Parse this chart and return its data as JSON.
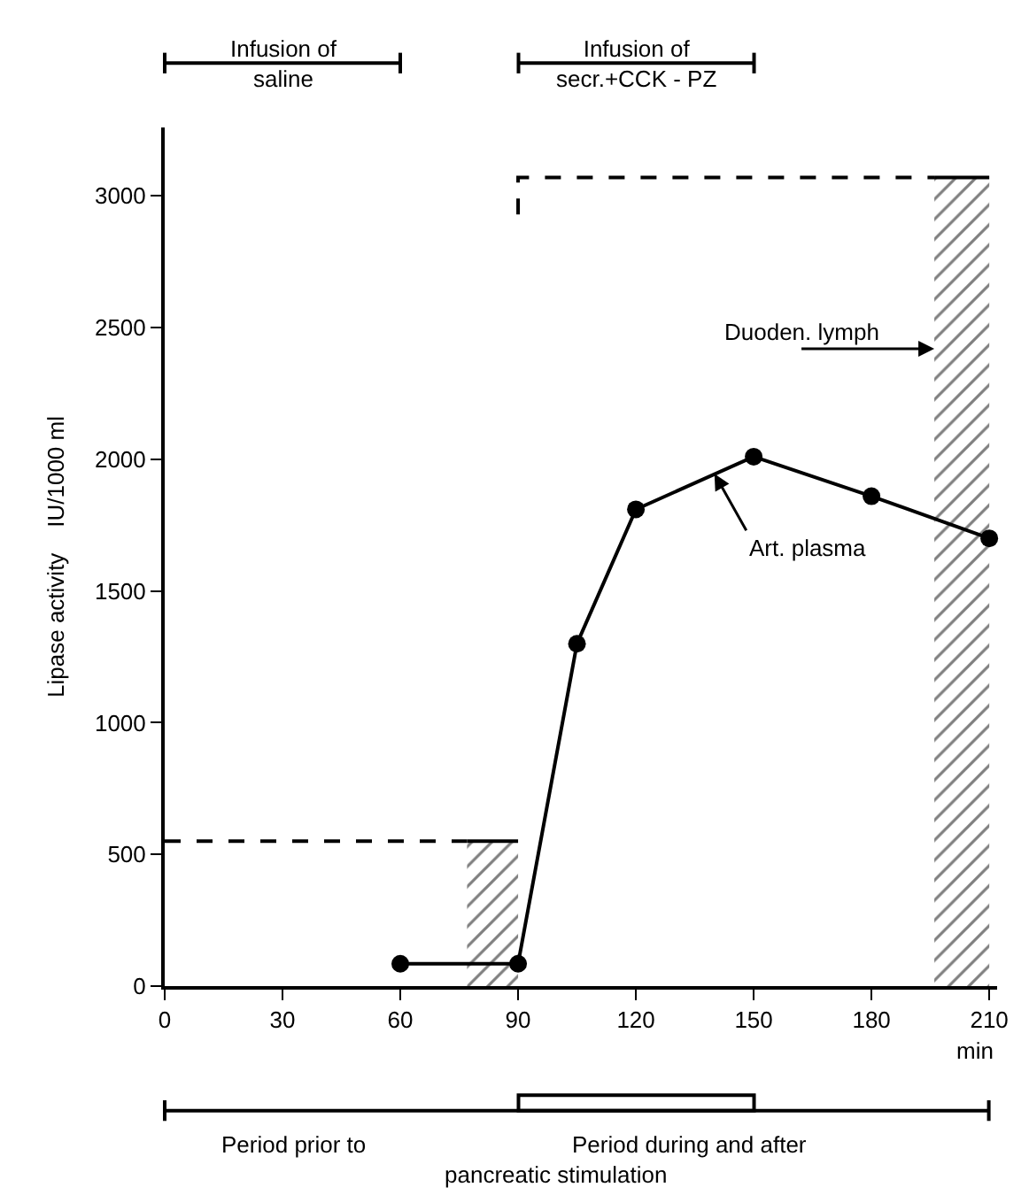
{
  "chart_data": {
    "type": "line",
    "xlabel": "min",
    "ylabel": "Lipase activity    IU/1000 ml",
    "x": [
      60,
      90,
      105,
      120,
      150,
      180,
      210
    ],
    "series": [
      {
        "color": "#000000",
        "values": [
          85,
          85,
          1300,
          1810,
          2010,
          1860,
          1700
        ],
        "marker": "circle",
        "line_style": "solid"
      },
      {
        "type": "area",
        "color": "#000000",
        "x": [
          77,
          90
        ],
        "values": [
          550,
          550
        ]
      },
      {
        "type": "area",
        "color": "#000000",
        "x": [
          196,
          210
        ],
        "values": [
          3070,
          3070
        ]
      },
      {
        "color": "#000000",
        "x": [
          0,
          77
        ],
        "values": [
          550,
          550
        ],
        "marker": "none",
        "line_style": "dashed"
      },
      {
        "color": "#000000",
        "x": [
          90,
          90,
          196
        ],
        "values": [
          2930,
          3070,
          3070
        ],
        "marker": "none",
        "line_style": "dashed"
      }
    ],
    "xlim": [
      0,
      212
    ],
    "xticks": [
      0,
      30,
      60,
      90,
      120,
      150,
      180,
      210
    ],
    "ylim": [
      0,
      3260
    ],
    "yticks": [
      0,
      500,
      1000,
      1500,
      2000,
      2500,
      3000
    ],
    "annotations": [
      {
        "text": "Art. plasma",
        "x": 140,
        "y": 1945
      },
      "Infusion of\nsaline",
      "Infusion of\nsecr.+CCK - PZ",
      {
        "text": "Duoden. lymph",
        "x": 196,
        "y": 2420
      },
      "Period prior to",
      "Period during and after",
      "pancreatic stimulation"
    ]
  }
}
